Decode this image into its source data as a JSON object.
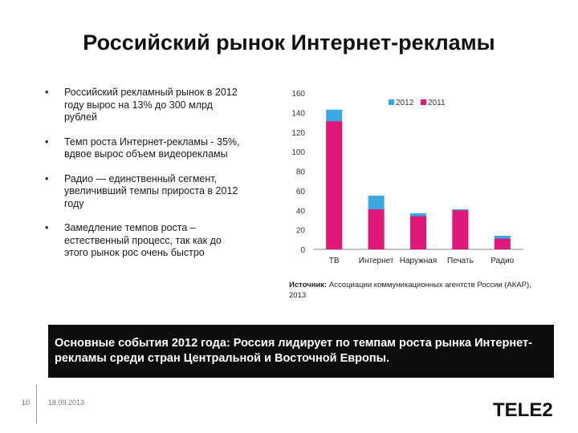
{
  "slide": {
    "title": "Российский рынок Интернет-рекламы",
    "bullet_marker": "•",
    "bullets": [
      "Российский рекламный рынок в 2012 году вырос на 13% до 300 млрд рублей",
      "Темп роста Интернет-рекламы - 35%, вдвое вырос объем видеорекламы",
      "Радио — единственный сегмент, увеличивший темпы прироста в 2012 году",
      "Замедление темпов роста – естественный процесс, так как до этого рынок рос очень быстро"
    ],
    "source_label": "Источник:",
    "source_text": " Ассоциации коммуникационных агентств России (АКАР), 2013",
    "banner": "Основные события 2012 года: Россия лидирует по темпам роста рынка Интернет-рекламы среди стран Центральной и Восточной Европы.",
    "page_number": "10",
    "date": "18.09.2013",
    "logo_text": "TELE2"
  },
  "colors": {
    "series_2012": "#3aa8e0",
    "series_2011": "#e0187a"
  },
  "chart_data": {
    "type": "bar",
    "title": "",
    "categories": [
      "ТВ",
      "Интернет",
      "Наружная",
      "Печать",
      "Радио"
    ],
    "series": [
      {
        "name": "2011",
        "values": [
          131,
          41,
          34,
          40,
          11
        ]
      },
      {
        "name": "2012",
        "values": [
          143,
          55,
          37,
          41,
          14
        ]
      }
    ],
    "ylim": [
      0,
      160
    ],
    "yticks": [
      "0",
      "20",
      "40",
      "60",
      "80",
      "100",
      "120",
      "140",
      "160"
    ],
    "legend": [
      "2012",
      "2011"
    ],
    "legend_position": "top-right"
  }
}
